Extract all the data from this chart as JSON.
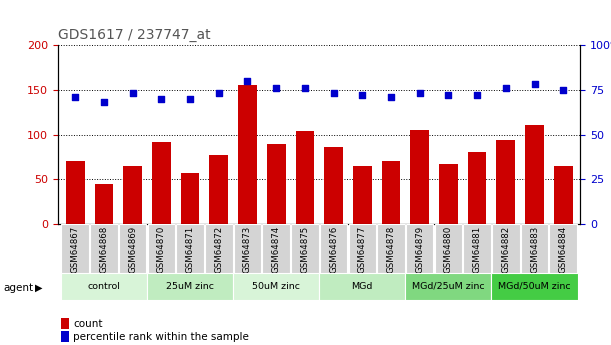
{
  "title": "GDS1617 / 237747_at",
  "samples": [
    "GSM64867",
    "GSM64868",
    "GSM64869",
    "GSM64870",
    "GSM64871",
    "GSM64872",
    "GSM64873",
    "GSM64874",
    "GSM64875",
    "GSM64876",
    "GSM64877",
    "GSM64878",
    "GSM64879",
    "GSM64880",
    "GSM64881",
    "GSM64882",
    "GSM64883",
    "GSM64884"
  ],
  "counts": [
    70,
    45,
    65,
    92,
    57,
    77,
    155,
    90,
    104,
    86,
    65,
    70,
    105,
    67,
    81,
    94,
    111,
    65
  ],
  "percentiles": [
    71,
    68,
    73,
    70,
    70,
    73,
    80,
    76,
    76,
    73,
    72,
    71,
    73,
    72,
    72,
    76,
    78,
    75
  ],
  "groups": [
    {
      "label": "control",
      "start": 0,
      "end": 3,
      "color": "#d8f4d8"
    },
    {
      "label": "25uM zinc",
      "start": 3,
      "end": 6,
      "color": "#c0ecc0"
    },
    {
      "label": "50uM zinc",
      "start": 6,
      "end": 9,
      "color": "#d8f4d8"
    },
    {
      "label": "MGd",
      "start": 9,
      "end": 12,
      "color": "#c0ecc0"
    },
    {
      "label": "MGd/25uM zinc",
      "start": 12,
      "end": 15,
      "color": "#80d880"
    },
    {
      "label": "MGd/50uM zinc",
      "start": 15,
      "end": 18,
      "color": "#44cc44"
    }
  ],
  "bar_color": "#cc0000",
  "dot_color": "#0000cc",
  "ylim_left": [
    0,
    200
  ],
  "ylim_right": [
    0,
    100
  ],
  "yticks_left": [
    0,
    50,
    100,
    150,
    200
  ],
  "yticks_right": [
    0,
    25,
    50,
    75,
    100
  ],
  "legend_count_label": "count",
  "legend_pct_label": "percentile rank within the sample"
}
